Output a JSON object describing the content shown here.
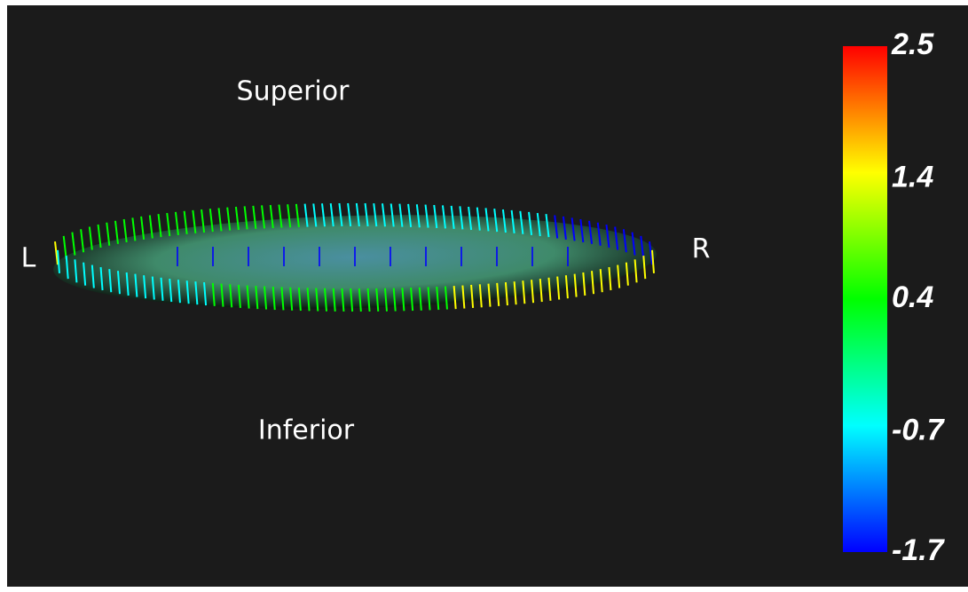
{
  "labels": {
    "superior": "Superior",
    "inferior": "Inferior",
    "left": "L",
    "right": "R"
  },
  "colorbar": {
    "lim": [
      -1.7,
      2.5
    ],
    "ticks": [
      2.5,
      1.4,
      0.4,
      -0.7,
      -1.7
    ],
    "colors": [
      "#0000ff",
      "#00ffff",
      "#00ff00",
      "#ffff00",
      "#ff0000"
    ]
  }
}
